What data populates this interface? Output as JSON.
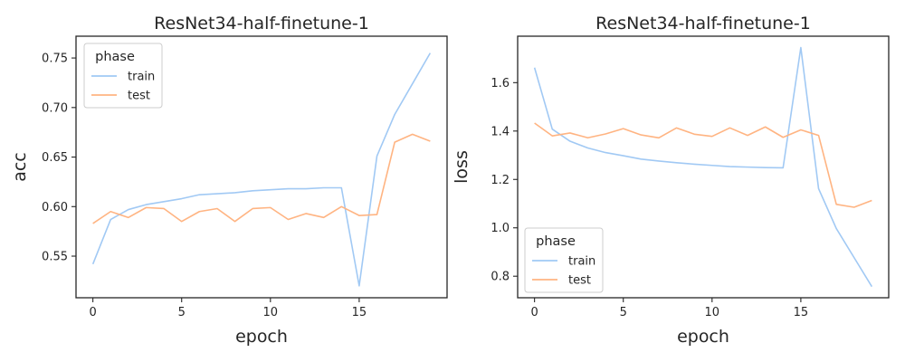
{
  "colors": {
    "train": "#a1c9f4",
    "test": "#ffb482",
    "axis": "#262626"
  },
  "chart_data": [
    {
      "type": "line",
      "title": "ResNet34-half-finetune-1",
      "xlabel": "epoch",
      "ylabel": "acc",
      "xlim": [
        -0.95,
        19.95
      ],
      "ylim": [
        0.508,
        0.772
      ],
      "xticks": [
        0,
        5,
        10,
        15
      ],
      "yticks": [
        0.55,
        0.6,
        0.65,
        0.7,
        0.75
      ],
      "ytick_labels": [
        "0.55",
        "0.60",
        "0.65",
        "0.70",
        "0.75"
      ],
      "grid": false,
      "legend": {
        "title": "phase",
        "placement": "upper-left"
      },
      "x": [
        0,
        1,
        2,
        3,
        4,
        5,
        6,
        7,
        8,
        9,
        10,
        11,
        12,
        13,
        14,
        15,
        16,
        17,
        18,
        19
      ],
      "series": [
        {
          "name": "train",
          "color": "#a1c9f4",
          "values": [
            0.542,
            0.587,
            0.597,
            0.602,
            0.605,
            0.608,
            0.612,
            0.613,
            0.614,
            0.616,
            0.617,
            0.618,
            0.618,
            0.619,
            0.619,
            0.52,
            0.651,
            0.693,
            0.724,
            0.755
          ]
        },
        {
          "name": "test",
          "color": "#ffb482",
          "values": [
            0.583,
            0.595,
            0.589,
            0.599,
            0.598,
            0.585,
            0.595,
            0.598,
            0.585,
            0.598,
            0.599,
            0.587,
            0.593,
            0.589,
            0.6,
            0.591,
            0.592,
            0.665,
            0.673,
            0.666
          ]
        }
      ]
    },
    {
      "type": "line",
      "title": "ResNet34-half-finetune-1",
      "xlabel": "epoch",
      "ylabel": "loss",
      "xlim": [
        -0.95,
        19.95
      ],
      "ylim": [
        0.711,
        1.792
      ],
      "xticks": [
        0,
        5,
        10,
        15
      ],
      "yticks": [
        0.8,
        1.0,
        1.2,
        1.4,
        1.6
      ],
      "ytick_labels": [
        "0.8",
        "1.0",
        "1.2",
        "1.4",
        "1.6"
      ],
      "grid": false,
      "legend": {
        "title": "phase",
        "placement": "lower-left"
      },
      "x": [
        0,
        1,
        2,
        3,
        4,
        5,
        6,
        7,
        8,
        9,
        10,
        11,
        12,
        13,
        14,
        15,
        16,
        17,
        18,
        19
      ],
      "series": [
        {
          "name": "train",
          "color": "#a1c9f4",
          "values": [
            1.662,
            1.408,
            1.358,
            1.33,
            1.311,
            1.298,
            1.284,
            1.276,
            1.269,
            1.263,
            1.258,
            1.253,
            1.251,
            1.249,
            1.248,
            1.745,
            1.162,
            0.997,
            0.877,
            0.757
          ]
        },
        {
          "name": "test",
          "color": "#ffb482",
          "values": [
            1.433,
            1.38,
            1.392,
            1.372,
            1.388,
            1.41,
            1.384,
            1.372,
            1.413,
            1.387,
            1.378,
            1.413,
            1.382,
            1.417,
            1.374,
            1.405,
            1.382,
            1.097,
            1.085,
            1.113
          ]
        }
      ]
    }
  ]
}
